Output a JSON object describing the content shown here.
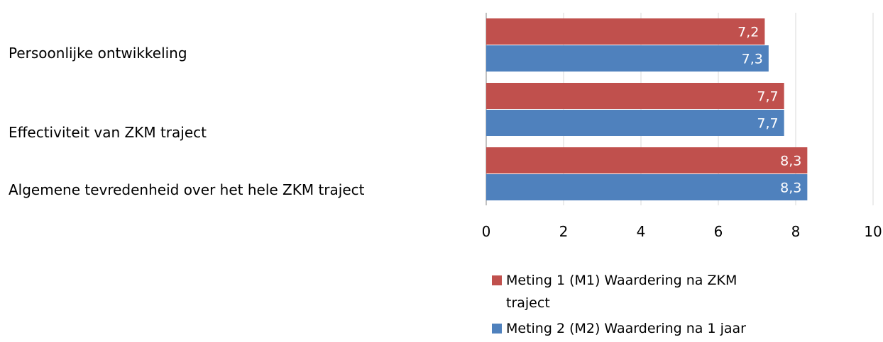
{
  "chart_data": {
    "type": "bar",
    "orientation": "horizontal",
    "categories": [
      "Persoonlijke ontwikkeling",
      "Effectiviteit van ZKM traject",
      "Algemene tevredenheid over het hele ZKM traject"
    ],
    "series": [
      {
        "name_lines": [
          "Meting 1 (M1) Waardering na ZKM",
          "traject"
        ],
        "color": "#C0504D",
        "values": [
          7.2,
          7.7,
          8.3
        ],
        "value_labels": [
          "7,2",
          "7,7",
          "8,3"
        ]
      },
      {
        "name_lines": [
          "Meting 2 (M2) Waardering na 1 jaar"
        ],
        "color": "#4F81BD",
        "values": [
          7.3,
          7.7,
          8.3
        ],
        "value_labels": [
          "7,3",
          "7,7",
          "8,3"
        ]
      }
    ],
    "xlim": [
      0,
      10
    ],
    "xticks": [
      0,
      2,
      4,
      6,
      8,
      10
    ],
    "xtick_labels": [
      "0",
      "2",
      "4",
      "6",
      "8",
      "10"
    ],
    "grid": true,
    "legend_position": "bottom"
  }
}
